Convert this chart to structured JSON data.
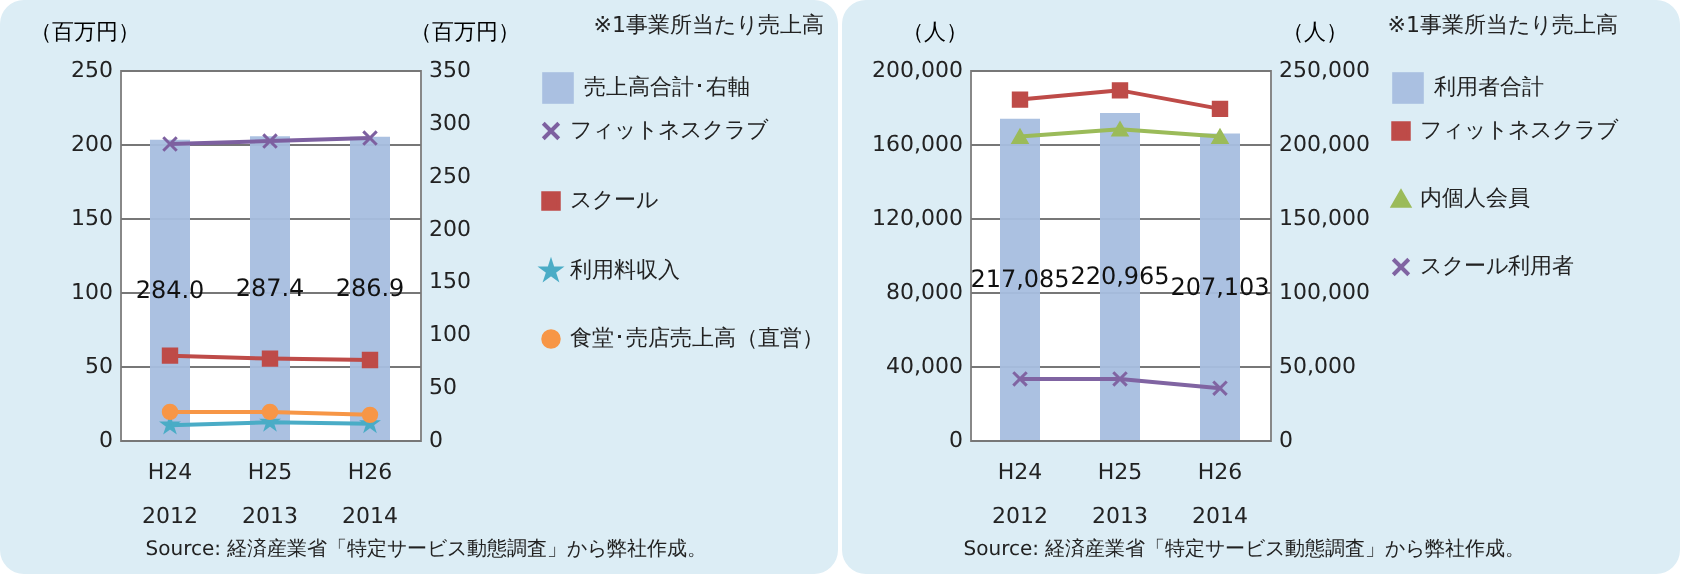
{
  "chart_data": [
    {
      "type": "bar",
      "categories": [
        "H24\n2012",
        "H25\n2013",
        "H26\n2014"
      ],
      "ylabel": "（百万円）",
      "y2label": "（百万円）",
      "ylim": [
        0,
        250
      ],
      "yticks": [
        0,
        50,
        100,
        150,
        200,
        250
      ],
      "y2lim": [
        0,
        350
      ],
      "y2ticks": [
        0,
        50,
        100,
        150,
        200,
        250,
        300,
        350
      ],
      "grid": "y",
      "legend": "right",
      "annotations": [
        "※1事業所当たり売上高",
        "Source: 経済産業省「特定サービス動態調査」から弊社作成。"
      ],
      "series": [
        {
          "name": "売上高合計･右軸",
          "axis": "y2",
          "color": "#a7bedf",
          "values": [
            284.0,
            287.4,
            286.9
          ],
          "value_labels": [
            "284.0",
            "287.4",
            "286.9"
          ]
        },
        {
          "name": "フィットネスクラブ",
          "type": "line",
          "marker": "cross",
          "color": "#7d60a0",
          "values": [
            200,
            202,
            204
          ]
        },
        {
          "name": "スクール",
          "type": "line",
          "marker": "square",
          "color": "#be4b48",
          "values": [
            57,
            55,
            54
          ]
        },
        {
          "name": "利用料収入",
          "type": "line",
          "marker": "star",
          "color": "#4aacc6",
          "values": [
            10,
            12,
            11
          ]
        },
        {
          "name": "食堂･売店売上高（直営）",
          "type": "line",
          "marker": "circle",
          "color": "#f79646",
          "values": [
            19,
            19,
            17
          ]
        }
      ]
    },
    {
      "type": "bar",
      "categories": [
        "H24\n2012",
        "H25\n2013",
        "H26\n2014"
      ],
      "ylabel": "（人）",
      "y2label": "（人）",
      "ylim": [
        0,
        200000
      ],
      "yticks": [
        {
          "value": 0,
          "label": "0"
        },
        {
          "value": 40000,
          "label": "40,000"
        },
        {
          "value": 80000,
          "label": "80,000"
        },
        {
          "value": 120000,
          "label": "120,000"
        },
        {
          "value": 160000,
          "label": "160,000"
        },
        {
          "value": 200000,
          "label": "200,000"
        }
      ],
      "y2lim": [
        0,
        250000
      ],
      "y2ticks": [
        {
          "value": 0,
          "label": "0"
        },
        {
          "value": 50000,
          "label": "50,000"
        },
        {
          "value": 100000,
          "label": "100,000"
        },
        {
          "value": 150000,
          "label": "150,000"
        },
        {
          "value": 200000,
          "label": "200,000"
        },
        {
          "value": 250000,
          "label": "250,000"
        }
      ],
      "grid": "y",
      "legend": "right",
      "annotations": [
        "※1事業所当たり売上高",
        "Source: 経済産業省「特定サービス動態調査」から弊社作成。"
      ],
      "series": [
        {
          "name": "利用者合計",
          "axis": "y2",
          "color": "#a7bedf",
          "values": [
            217085,
            220965,
            207103
          ],
          "value_labels": [
            "217,085",
            "220,965",
            "207,103"
          ]
        },
        {
          "name": "フィットネスクラブ",
          "type": "line",
          "marker": "square",
          "color": "#be4b48",
          "values": [
            184000,
            189000,
            179000
          ]
        },
        {
          "name": "内個人会員",
          "type": "line",
          "marker": "triangle",
          "color": "#9bbb59",
          "values": [
            164000,
            168000,
            164000
          ]
        },
        {
          "name": "スクール利用者",
          "type": "line",
          "marker": "cross",
          "color": "#8064a2",
          "values": [
            33000,
            33000,
            28000
          ]
        }
      ]
    }
  ]
}
